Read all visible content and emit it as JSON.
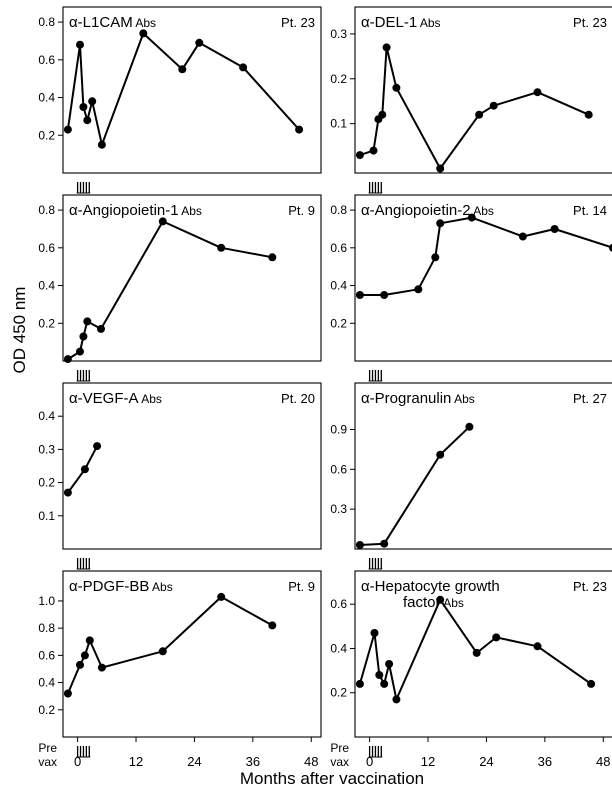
{
  "figure": {
    "ylabel": "OD 450 nm",
    "xlabel": "Months after vaccination",
    "prevax_label_line1": "Pre",
    "prevax_label_line2": "vax",
    "x_ticks": [
      "0",
      "12",
      "24",
      "36",
      "48"
    ]
  },
  "chart_data": [
    {
      "type": "line",
      "title_alpha": "α-",
      "title_main": "L1CAM",
      "title_suffix": "Abs",
      "patient": "Pt. 23",
      "xlim": [
        -3,
        50
      ],
      "ylim": [
        0,
        0.88
      ],
      "yticks": [
        0.2,
        0.4,
        0.6,
        0.8
      ],
      "ytick_labels": [
        "0.2",
        "0.4",
        "0.6",
        "0.8"
      ],
      "x": [
        -2,
        0.5,
        1.2,
        2.0,
        3.0,
        5.0,
        13.5,
        21.5,
        25.0,
        34.0,
        45.5
      ],
      "y": [
        0.23,
        0.68,
        0.35,
        0.28,
        0.38,
        0.15,
        0.74,
        0.55,
        0.69,
        0.56,
        0.23
      ],
      "vax_marks": [
        0,
        0.6,
        1.2,
        1.8,
        2.4
      ]
    },
    {
      "type": "line",
      "title_alpha": "α-",
      "title_main": "DEL-1",
      "title_suffix": "Abs",
      "patient": "Pt. 23",
      "xlim": [
        -3,
        50
      ],
      "ylim": [
        -0.01,
        0.36
      ],
      "yticks": [
        0.1,
        0.2,
        0.3
      ],
      "ytick_labels": [
        "0.1",
        "0.2",
        "0.3"
      ],
      "x": [
        -2,
        0.8,
        1.8,
        2.6,
        3.5,
        5.5,
        14.5,
        22.5,
        25.5,
        34.5,
        45.0
      ],
      "y": [
        0.03,
        0.04,
        0.11,
        0.12,
        0.27,
        0.18,
        0.0,
        0.12,
        0.14,
        0.17,
        0.12
      ],
      "vax_marks": [
        0,
        0.6,
        1.2,
        1.8,
        2.4
      ]
    },
    {
      "type": "line",
      "title_alpha": "α-",
      "title_main": "Angiopoietin-1",
      "title_suffix": "Abs",
      "patient": "Pt. 9",
      "xlim": [
        -3,
        50
      ],
      "ylim": [
        0,
        0.88
      ],
      "yticks": [
        0.2,
        0.4,
        0.6,
        0.8
      ],
      "ytick_labels": [
        "0.2",
        "0.4",
        "0.6",
        "0.8"
      ],
      "x": [
        -2,
        0.5,
        1.2,
        2.0,
        4.8,
        17.5,
        29.5,
        40.0
      ],
      "y": [
        0.01,
        0.05,
        0.13,
        0.21,
        0.17,
        0.74,
        0.6,
        0.55
      ],
      "vax_marks": [
        0,
        0.6,
        1.2,
        1.8,
        2.4
      ]
    },
    {
      "type": "line",
      "title_alpha": "α-",
      "title_main": "Angiopoietin-2",
      "title_suffix": "Abs",
      "patient": "Pt. 14",
      "xlim": [
        -3,
        50
      ],
      "ylim": [
        0,
        0.88
      ],
      "yticks": [
        0.2,
        0.4,
        0.6,
        0.8
      ],
      "ytick_labels": [
        "0.2",
        "0.4",
        "0.6",
        "0.8"
      ],
      "x": [
        -2,
        3.0,
        10.0,
        13.5,
        14.5,
        21.0,
        31.5,
        38.0,
        50.0
      ],
      "y": [
        0.35,
        0.35,
        0.38,
        0.55,
        0.73,
        0.76,
        0.66,
        0.7,
        0.6
      ],
      "vax_marks": [
        0,
        0.6,
        1.2,
        1.8,
        2.4
      ]
    },
    {
      "type": "line",
      "title_alpha": "α-",
      "title_main": "VEGF-A",
      "title_suffix": "Abs",
      "patient": "Pt. 20",
      "xlim": [
        -3,
        50
      ],
      "ylim": [
        0,
        0.5
      ],
      "yticks": [
        0.1,
        0.2,
        0.3,
        0.4
      ],
      "ytick_labels": [
        "0.1",
        "0.2",
        "0.3",
        "0.4"
      ],
      "x": [
        -2,
        1.5,
        4.0
      ],
      "y": [
        0.17,
        0.24,
        0.31
      ],
      "vax_marks": [
        0,
        0.6,
        1.2,
        1.8,
        2.4
      ]
    },
    {
      "type": "line",
      "title_alpha": "α-",
      "title_main": "Progranulin",
      "title_suffix": "Abs",
      "patient": "Pt. 27",
      "xlim": [
        -3,
        50
      ],
      "ylim": [
        0,
        1.25
      ],
      "yticks": [
        0.3,
        0.6,
        0.9
      ],
      "ytick_labels": [
        "0.3",
        "0.6",
        "0.9"
      ],
      "x": [
        -2,
        3.0,
        14.5,
        20.5
      ],
      "y": [
        0.03,
        0.04,
        0.71,
        0.92
      ],
      "vax_marks": [
        0,
        0.6,
        1.2,
        1.8,
        2.4
      ]
    },
    {
      "type": "line",
      "title_alpha": "α-",
      "title_main": "PDGF-BB",
      "title_suffix": "Abs",
      "patient": "Pt. 9",
      "xlim": [
        -3,
        50
      ],
      "ylim": [
        0,
        1.22
      ],
      "yticks": [
        0.2,
        0.4,
        0.6,
        0.8,
        1.0
      ],
      "ytick_labels": [
        "0.2",
        "0.4",
        "0.6",
        "0.8",
        "1.0"
      ],
      "x": [
        -2,
        0.5,
        1.5,
        2.5,
        5.0,
        17.5,
        29.5,
        40.0
      ],
      "y": [
        0.32,
        0.53,
        0.6,
        0.71,
        0.51,
        0.63,
        1.03,
        0.82
      ],
      "vax_marks": [
        0,
        0.6,
        1.2,
        1.8,
        2.4
      ]
    },
    {
      "type": "line",
      "title_alpha": "α-",
      "title_main": "Hepatocyte growth",
      "title_line2": "factor",
      "title_suffix": "Abs",
      "patient": "Pt. 23",
      "xlim": [
        -3,
        50
      ],
      "ylim": [
        0,
        0.75
      ],
      "yticks": [
        0.2,
        0.4,
        0.6
      ],
      "ytick_labels": [
        "0.2",
        "0.4",
        "0.6"
      ],
      "x": [
        -2,
        1.0,
        2.0,
        3.0,
        4.0,
        5.5,
        14.5,
        22.0,
        26.0,
        34.5,
        45.5
      ],
      "y": [
        0.24,
        0.47,
        0.28,
        0.24,
        0.33,
        0.17,
        0.62,
        0.38,
        0.45,
        0.41,
        0.24
      ],
      "vax_marks": [
        0,
        0.6,
        1.2,
        1.8,
        2.4
      ]
    }
  ]
}
